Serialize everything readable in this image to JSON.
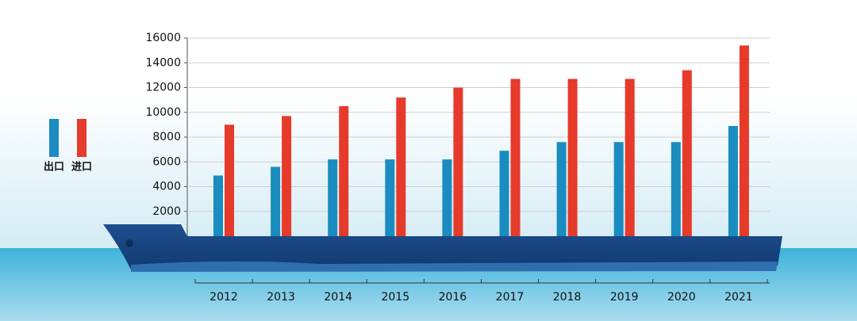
{
  "chart_data": {
    "type": "bar",
    "categories": [
      "2012",
      "2013",
      "2014",
      "2015",
      "2016",
      "2017",
      "2018",
      "2019",
      "2020",
      "2021"
    ],
    "series": [
      {
        "name": "出口",
        "color": "#1a8cbf",
        "values": [
          4900,
          5600,
          6200,
          6200,
          6200,
          6900,
          7600,
          7600,
          7600,
          8900
        ]
      },
      {
        "name": "进口",
        "color": "#e63a2b",
        "values": [
          9000,
          9700,
          10500,
          11200,
          12000,
          12700,
          12700,
          12700,
          13400,
          15400
        ]
      }
    ],
    "ylim": [
      0,
      16000
    ],
    "yticks": [
      2000,
      4000,
      6000,
      8000,
      10000,
      12000,
      14000,
      16000
    ],
    "grid": true
  }
}
